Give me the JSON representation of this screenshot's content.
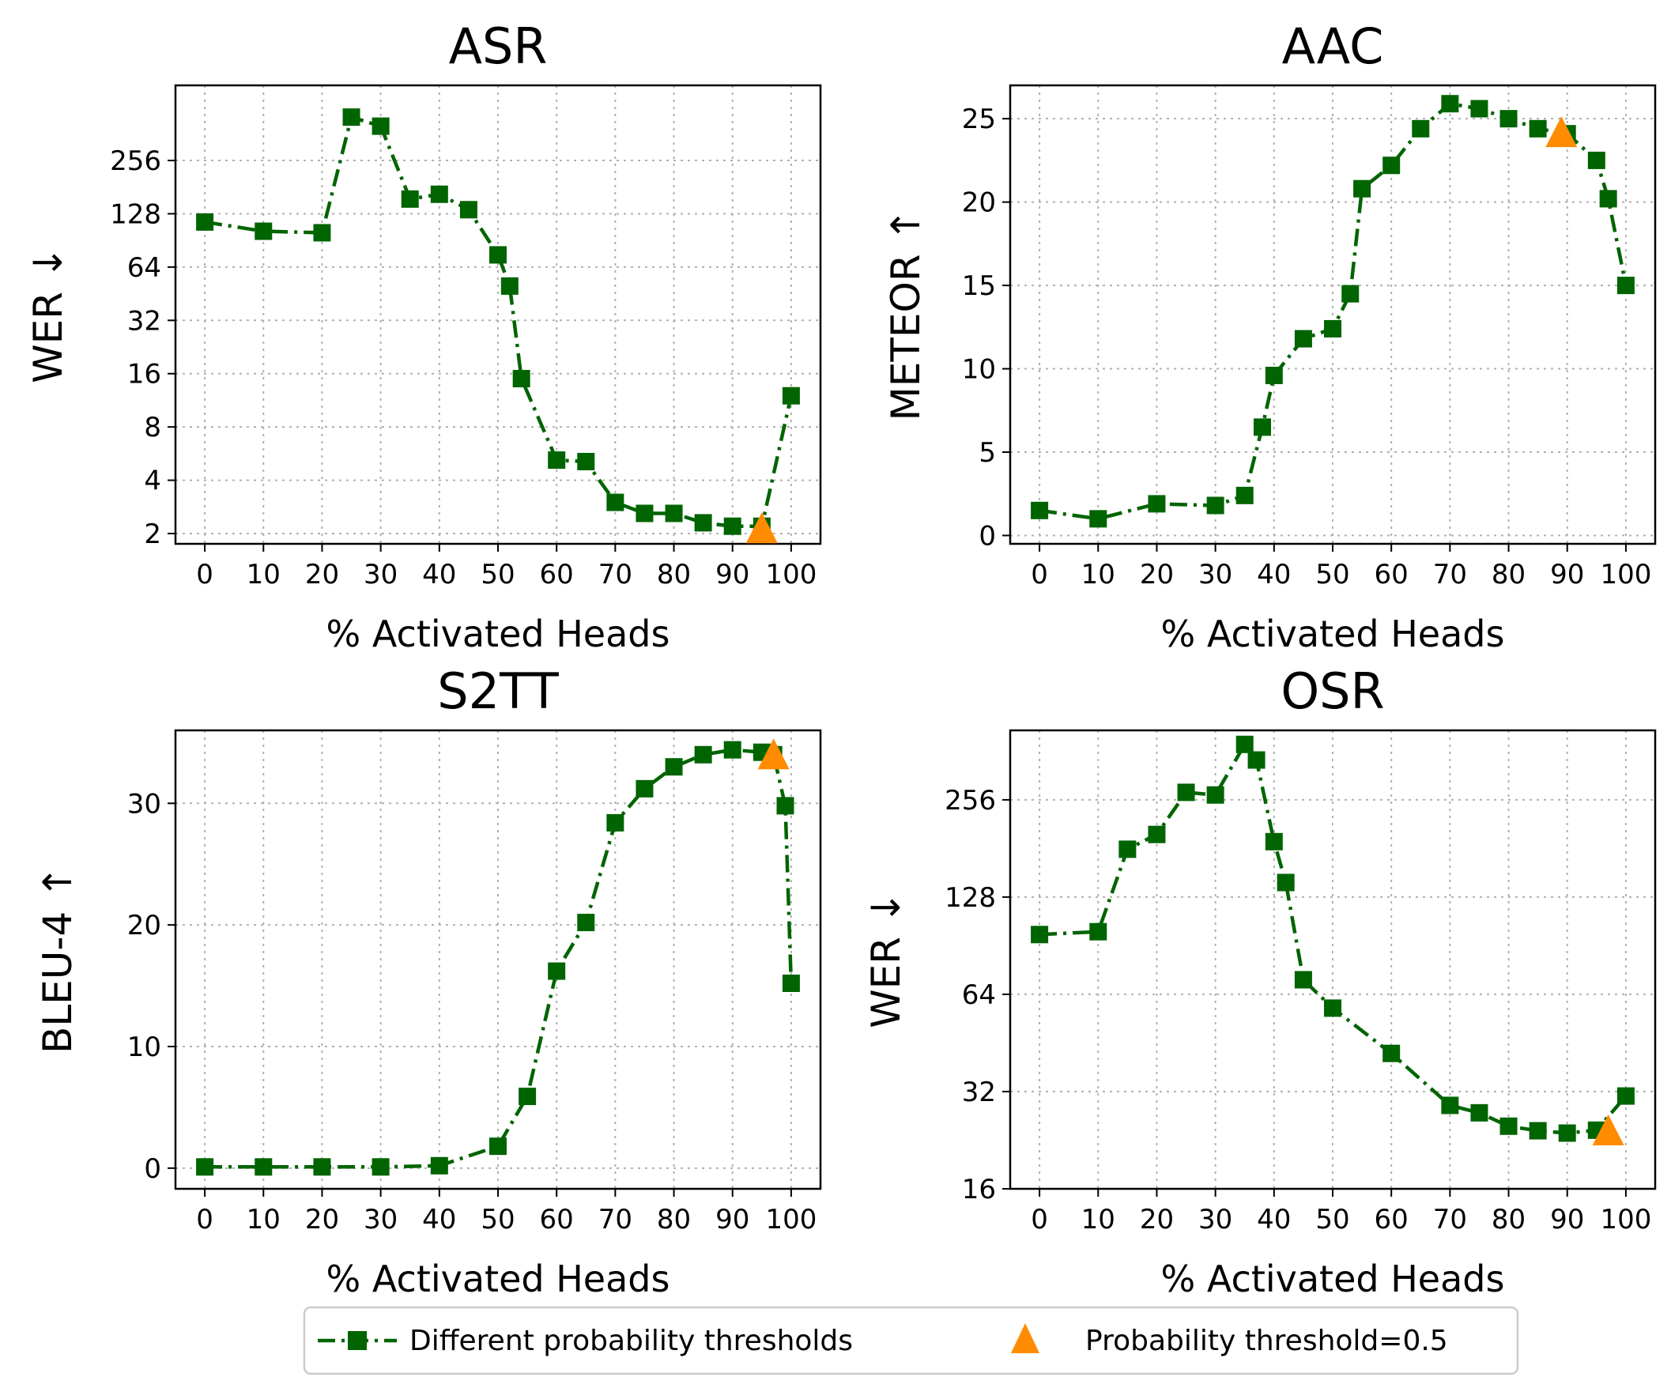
{
  "chart_data": [
    {
      "type": "line",
      "title": "ASR",
      "xlabel": "% Activated Heads",
      "ylabel": "WER ↓",
      "yscale": "log2",
      "xlim": [
        -5,
        105
      ],
      "ylim": [
        1.75,
        680
      ],
      "xticks": [
        0,
        10,
        20,
        30,
        40,
        50,
        60,
        70,
        80,
        90,
        100
      ],
      "yticks": [
        2,
        4,
        8,
        16,
        32,
        64,
        128,
        256
      ],
      "series": [
        {
          "name": "Different probability thresholds",
          "x": [
            0,
            10,
            20,
            25,
            30,
            35,
            40,
            45,
            50,
            52,
            54,
            60,
            65,
            70,
            75,
            80,
            85,
            90,
            95,
            100
          ],
          "y": [
            115,
            102,
            100,
            450,
            400,
            155,
            165,
            135,
            75,
            50,
            15,
            5.2,
            5.1,
            3.0,
            2.6,
            2.6,
            2.3,
            2.2,
            2.2,
            12
          ]
        }
      ],
      "marker_point": {
        "name": "Probability threshold=0.5",
        "x": [
          95
        ],
        "y": [
          2.1
        ]
      }
    },
    {
      "type": "line",
      "title": "AAC",
      "xlabel": "% Activated Heads",
      "ylabel": "METEOR ↑",
      "yscale": "linear",
      "xlim": [
        -5,
        105
      ],
      "ylim": [
        -0.5,
        27
      ],
      "xticks": [
        0,
        10,
        20,
        30,
        40,
        50,
        60,
        70,
        80,
        90,
        100
      ],
      "yticks": [
        0,
        5,
        10,
        15,
        20,
        25
      ],
      "series": [
        {
          "name": "Different probability thresholds",
          "x": [
            0,
            10,
            20,
            30,
            35,
            38,
            40,
            45,
            50,
            53,
            55,
            60,
            65,
            70,
            75,
            80,
            85,
            90,
            95,
            97,
            100
          ],
          "y": [
            1.5,
            1.0,
            1.9,
            1.8,
            2.4,
            6.5,
            9.6,
            11.8,
            12.4,
            14.5,
            20.8,
            22.2,
            24.4,
            25.9,
            25.6,
            25.0,
            24.4,
            24.1,
            22.5,
            20.2,
            15.0
          ]
        }
      ],
      "marker_point": {
        "name": "Probability threshold=0.5",
        "x": [
          89
        ],
        "y": [
          24.1
        ]
      }
    },
    {
      "type": "line",
      "title": "S2TT",
      "xlabel": "% Activated Heads",
      "ylabel": "BLEU-4 ↑",
      "yscale": "linear",
      "xlim": [
        -5,
        105
      ],
      "ylim": [
        -1.7,
        36
      ],
      "xticks": [
        0,
        10,
        20,
        30,
        40,
        50,
        60,
        70,
        80,
        90,
        100
      ],
      "yticks": [
        0,
        10,
        20,
        30
      ],
      "series": [
        {
          "name": "Different probability thresholds",
          "x": [
            0,
            10,
            20,
            30,
            40,
            50,
            55,
            60,
            65,
            70,
            75,
            80,
            85,
            90,
            95,
            97,
            99,
            100
          ],
          "y": [
            0.1,
            0.1,
            0.1,
            0.1,
            0.2,
            1.8,
            5.9,
            16.2,
            20.2,
            28.4,
            31.2,
            33.0,
            34.0,
            34.4,
            34.2,
            34.0,
            29.8,
            15.2
          ]
        }
      ],
      "marker_point": {
        "name": "Probability threshold=0.5",
        "x": [
          97
        ],
        "y": [
          33.9
        ]
      }
    },
    {
      "type": "line",
      "title": "OSR",
      "xlabel": "% Activated Heads",
      "ylabel": "WER ↓",
      "yscale": "log2",
      "xlim": [
        -5,
        105
      ],
      "ylim": [
        16,
        420
      ],
      "xticks": [
        0,
        10,
        20,
        30,
        40,
        50,
        60,
        70,
        80,
        90,
        100
      ],
      "yticks": [
        16,
        32,
        64,
        128,
        256
      ],
      "series": [
        {
          "name": "Different probability thresholds",
          "x": [
            0,
            10,
            15,
            20,
            25,
            30,
            35,
            37,
            40,
            42,
            45,
            50,
            60,
            70,
            75,
            80,
            85,
            90,
            95,
            100
          ],
          "y": [
            98,
            100,
            180,
            200,
            270,
            265,
            380,
            340,
            190,
            142,
            71,
            58,
            42,
            29,
            27.5,
            25,
            24.2,
            23.8,
            24.3,
            31
          ]
        }
      ],
      "marker_point": {
        "name": "Probability threshold=0.5",
        "x": [
          97
        ],
        "y": [
          24
        ]
      }
    }
  ],
  "legend": {
    "line_label": "Different probability thresholds",
    "marker_label": "Probability threshold=0.5"
  },
  "colors": {
    "series": "#006400",
    "marker": "#ff8c00"
  }
}
